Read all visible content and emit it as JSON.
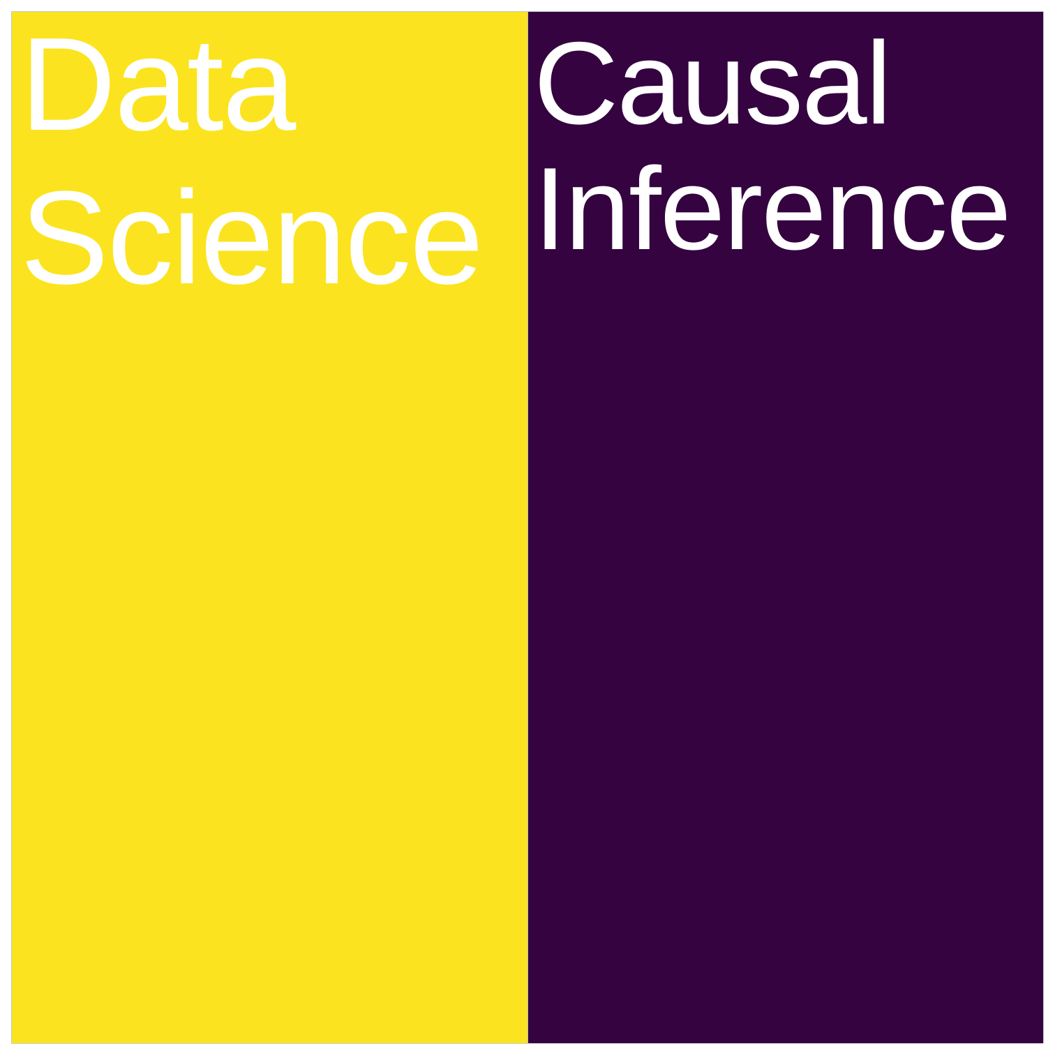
{
  "tiles": [
    {
      "lines": [
        "Data",
        "Science"
      ],
      "color": "#fbe41f"
    },
    {
      "lines": [
        "Causal",
        "Inference"
      ],
      "color": "#340340"
    }
  ],
  "text_color": "#ffffff"
}
